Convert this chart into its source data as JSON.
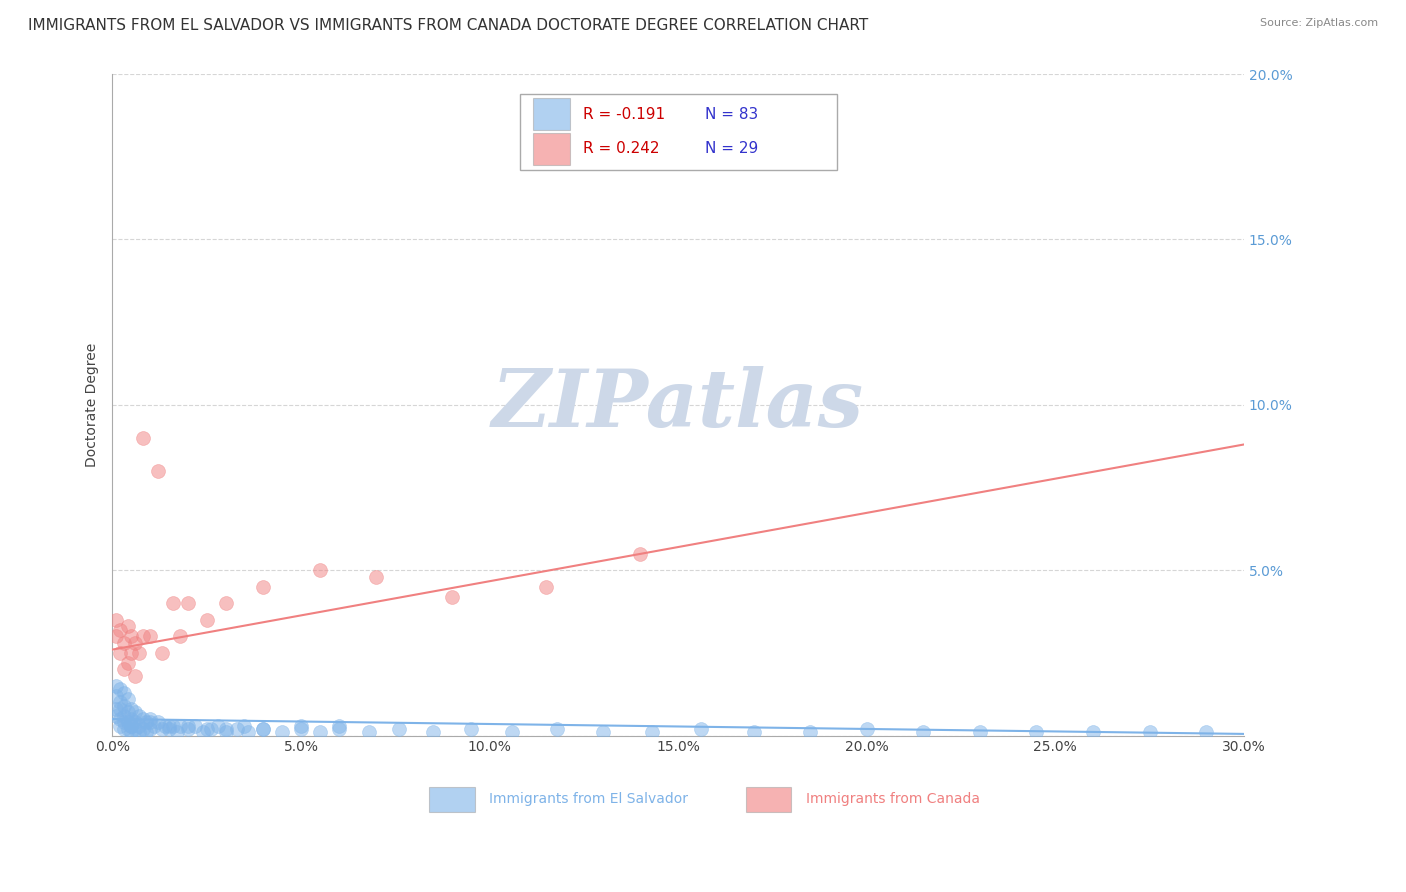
{
  "title": "IMMIGRANTS FROM EL SALVADOR VS IMMIGRANTS FROM CANADA DOCTORATE DEGREE CORRELATION CHART",
  "source": "Source: ZipAtlas.com",
  "ylabel": "Doctorate Degree",
  "xlim": [
    0.0,
    0.3
  ],
  "ylim": [
    0.0,
    0.2
  ],
  "xticks": [
    0.0,
    0.05,
    0.1,
    0.15,
    0.2,
    0.25,
    0.3
  ],
  "xtick_labels": [
    "0.0%",
    "5.0%",
    "10.0%",
    "15.0%",
    "20.0%",
    "25.0%",
    "30.0%"
  ],
  "yticks": [
    0.0,
    0.05,
    0.1,
    0.15,
    0.2
  ],
  "ytick_labels": [
    "",
    "5.0%",
    "10.0%",
    "15.0%",
    "20.0%"
  ],
  "blue_x": [
    0.001,
    0.001,
    0.001,
    0.001,
    0.002,
    0.002,
    0.002,
    0.002,
    0.002,
    0.003,
    0.003,
    0.003,
    0.003,
    0.003,
    0.004,
    0.004,
    0.004,
    0.004,
    0.005,
    0.005,
    0.005,
    0.005,
    0.006,
    0.006,
    0.006,
    0.007,
    0.007,
    0.007,
    0.008,
    0.008,
    0.009,
    0.009,
    0.01,
    0.01,
    0.011,
    0.012,
    0.013,
    0.014,
    0.015,
    0.016,
    0.017,
    0.018,
    0.02,
    0.022,
    0.024,
    0.026,
    0.028,
    0.03,
    0.033,
    0.036,
    0.04,
    0.045,
    0.05,
    0.055,
    0.06,
    0.068,
    0.076,
    0.085,
    0.095,
    0.106,
    0.118,
    0.13,
    0.143,
    0.156,
    0.17,
    0.185,
    0.2,
    0.215,
    0.23,
    0.245,
    0.26,
    0.275,
    0.29,
    0.005,
    0.01,
    0.015,
    0.02,
    0.025,
    0.03,
    0.035,
    0.04,
    0.05,
    0.06
  ],
  "blue_y": [
    0.008,
    0.012,
    0.015,
    0.006,
    0.01,
    0.014,
    0.008,
    0.005,
    0.003,
    0.009,
    0.013,
    0.006,
    0.004,
    0.002,
    0.011,
    0.007,
    0.004,
    0.002,
    0.008,
    0.005,
    0.003,
    0.001,
    0.007,
    0.004,
    0.002,
    0.006,
    0.003,
    0.001,
    0.005,
    0.002,
    0.004,
    0.001,
    0.005,
    0.002,
    0.003,
    0.004,
    0.002,
    0.003,
    0.002,
    0.003,
    0.001,
    0.003,
    0.002,
    0.003,
    0.001,
    0.002,
    0.003,
    0.001,
    0.002,
    0.001,
    0.002,
    0.001,
    0.002,
    0.001,
    0.003,
    0.001,
    0.002,
    0.001,
    0.002,
    0.001,
    0.002,
    0.001,
    0.001,
    0.002,
    0.001,
    0.001,
    0.002,
    0.001,
    0.001,
    0.001,
    0.001,
    0.001,
    0.001,
    0.003,
    0.004,
    0.003,
    0.003,
    0.002,
    0.002,
    0.003,
    0.002,
    0.003,
    0.002
  ],
  "pink_x": [
    0.001,
    0.001,
    0.002,
    0.002,
    0.003,
    0.003,
    0.004,
    0.004,
    0.005,
    0.005,
    0.006,
    0.006,
    0.007,
    0.008,
    0.008,
    0.01,
    0.012,
    0.013,
    0.016,
    0.018,
    0.02,
    0.025,
    0.03,
    0.04,
    0.055,
    0.07,
    0.09,
    0.115,
    0.14
  ],
  "pink_y": [
    0.03,
    0.035,
    0.025,
    0.032,
    0.028,
    0.02,
    0.033,
    0.022,
    0.03,
    0.025,
    0.028,
    0.018,
    0.025,
    0.03,
    0.09,
    0.03,
    0.08,
    0.025,
    0.04,
    0.03,
    0.04,
    0.035,
    0.04,
    0.045,
    0.05,
    0.048,
    0.042,
    0.045,
    0.055
  ],
  "blue_trend_x": [
    0.0,
    0.3
  ],
  "blue_trend_y": [
    0.005,
    0.0005
  ],
  "pink_trend_x": [
    0.0,
    0.3
  ],
  "pink_trend_y": [
    0.026,
    0.088
  ],
  "blue_color": "#7eb3e8",
  "pink_color": "#f08080",
  "legend_R_color": "#cc0000",
  "legend_N_color": "#3333cc",
  "watermark": "ZIPatlas",
  "watermark_color": "#cdd8e8",
  "title_fontsize": 11,
  "axis_label_fontsize": 10,
  "tick_fontsize": 10,
  "right_axis_color": "#5b9bd5",
  "grid_color": "#cccccc",
  "R1": -0.191,
  "N1": 83,
  "R2": 0.242,
  "N2": 29,
  "label1": "Immigrants from El Salvador",
  "label2": "Immigrants from Canada"
}
